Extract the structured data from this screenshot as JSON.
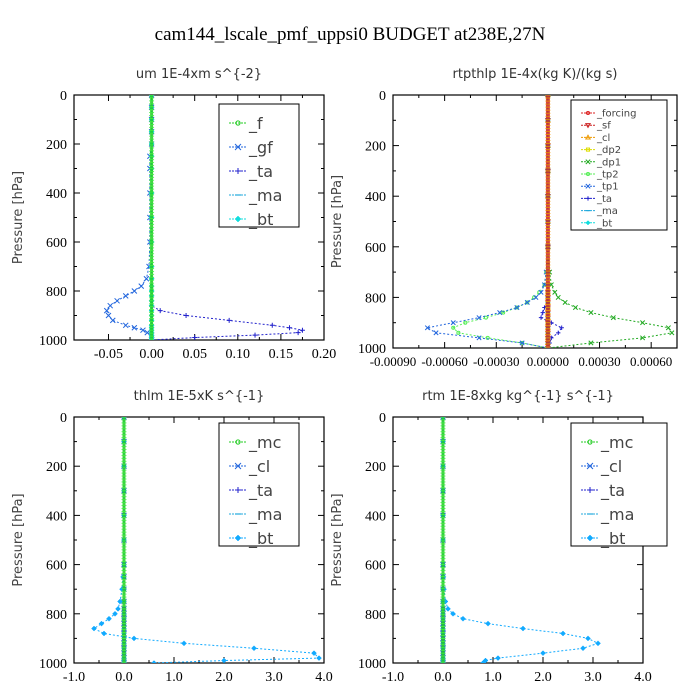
{
  "title": "cam144_lscale_pmf_uppsi0  BUDGET at238E,27N",
  "chart_data": [
    {
      "type": "line",
      "title": "um  1E-4xm s^{-2}",
      "ylabel": "Pressure [hPa]",
      "xlim": [
        -0.09,
        0.2
      ],
      "ylim": [
        1000,
        0
      ],
      "xticks": [
        -0.05,
        0.0,
        0.05,
        0.1,
        0.15,
        0.2
      ],
      "xtick_labels": [
        "-0.05",
        "0.00",
        "0.05",
        "0.10",
        "0.15",
        "0.20"
      ],
      "yticks": [
        0,
        200,
        400,
        600,
        800,
        1000
      ],
      "ytick_labels": [
        "0",
        "200",
        "400",
        "600",
        "800",
        "1000"
      ],
      "legend_position": "top-right",
      "legend_size": "large",
      "y": [
        0,
        50,
        100,
        150,
        200,
        250,
        300,
        400,
        500,
        600,
        700,
        750,
        780,
        800,
        820,
        840,
        860,
        880,
        900,
        920,
        940,
        950,
        960,
        970,
        980,
        990,
        1000
      ],
      "series": [
        {
          "name": "_f",
          "color": "#22cc22",
          "marker": "o",
          "values": [
            0,
            0,
            0,
            0,
            0,
            0,
            0,
            0,
            0,
            0,
            0,
            0,
            0,
            0,
            0,
            0,
            0,
            0,
            0,
            0,
            0,
            0,
            0,
            0,
            0,
            0,
            0
          ]
        },
        {
          "name": "_gf",
          "color": "#2266dd",
          "marker": "x",
          "values": [
            0,
            0,
            0,
            0,
            0,
            -0.002,
            -0.002,
            -0.002,
            -0.002,
            -0.002,
            -0.003,
            -0.006,
            -0.012,
            -0.02,
            -0.03,
            -0.04,
            -0.048,
            -0.052,
            -0.05,
            -0.045,
            -0.03,
            -0.02,
            -0.01,
            -0.005,
            0,
            0,
            0
          ]
        },
        {
          "name": "_ta",
          "color": "#2222cc",
          "marker": "+",
          "values": [
            0,
            0,
            0,
            0,
            0,
            0,
            0,
            0,
            0,
            0,
            0,
            0,
            0,
            0,
            0,
            0,
            0,
            0.01,
            0.04,
            0.09,
            0.14,
            0.16,
            0.175,
            0.17,
            0.12,
            0.05,
            0
          ]
        },
        {
          "name": "_ma",
          "color": "#22aadd",
          "marker": "-",
          "values": [
            0,
            0,
            0,
            0,
            0,
            0,
            0,
            0,
            0,
            0,
            0,
            0,
            0,
            0,
            0,
            0,
            0,
            0,
            0,
            0,
            0,
            0,
            0,
            0,
            0,
            0,
            0
          ]
        },
        {
          "name": "_bt",
          "color": "#11dddd",
          "marker": "◆",
          "values": [
            0,
            0,
            0,
            0,
            0,
            0,
            0,
            0,
            0,
            0,
            0,
            0,
            0,
            0,
            0,
            0,
            0,
            0,
            0,
            0,
            0,
            0,
            0,
            0,
            0,
            0,
            0
          ]
        }
      ]
    },
    {
      "type": "line",
      "title": "rtpthlp  1E-4x(kg K)/(kg s)",
      "ylabel": "Pressure [hPa]",
      "xlim": [
        -0.0009,
        0.00075
      ],
      "ylim": [
        1000,
        0
      ],
      "xticks": [
        -0.0009,
        -0.0006,
        -0.0003,
        0.0,
        0.0003,
        0.0006
      ],
      "xtick_labels": [
        "-0.00090",
        "-0.00060",
        "-0.00030",
        "0.00000",
        "0.00030",
        "0.00060"
      ],
      "yticks": [
        0,
        200,
        400,
        600,
        800,
        1000
      ],
      "ytick_labels": [
        "0",
        "200",
        "400",
        "600",
        "800",
        "1000"
      ],
      "legend_position": "top-right",
      "legend_size": "small",
      "y": [
        0,
        100,
        200,
        300,
        400,
        500,
        600,
        700,
        750,
        780,
        800,
        820,
        840,
        860,
        880,
        900,
        920,
        940,
        960,
        980,
        1000
      ],
      "series": [
        {
          "name": "_forcing",
          "color": "#dd2222",
          "marker": "o",
          "values": [
            0,
            0,
            0,
            0,
            0,
            0,
            0,
            0,
            0,
            0,
            0,
            0,
            0,
            0,
            0,
            0,
            0,
            0,
            0,
            0,
            0
          ]
        },
        {
          "name": "_sf",
          "color": "#cc2222",
          "marker": "▽",
          "values": [
            0,
            0,
            0,
            0,
            0,
            0,
            0,
            0,
            0,
            0,
            0,
            0,
            0,
            0,
            0,
            0,
            0,
            0,
            0,
            0,
            0
          ]
        },
        {
          "name": "_cl",
          "color": "#ee9900",
          "marker": "△",
          "values": [
            0,
            0,
            0,
            0,
            0,
            0,
            0,
            0,
            0,
            0,
            0,
            0,
            0,
            0,
            0,
            0,
            0,
            0,
            0,
            0,
            0
          ]
        },
        {
          "name": "_dp2",
          "color": "#dddd00",
          "marker": "□",
          "values": [
            0,
            0,
            0,
            0,
            0,
            0,
            0,
            0,
            0,
            0,
            0,
            0,
            0,
            0,
            0,
            0,
            0,
            0,
            0,
            0,
            0
          ]
        },
        {
          "name": "_dp1",
          "color": "#22aa22",
          "marker": "x",
          "values": [
            0,
            0,
            0,
            0,
            0,
            0,
            0,
            1e-05,
            2e-05,
            4e-05,
            6e-05,
            0.0001,
            0.00016,
            0.00025,
            0.00038,
            0.00055,
            0.0007,
            0.00072,
            0.00055,
            0.00025,
            0
          ]
        },
        {
          "name": "_tp2",
          "color": "#55ee55",
          "marker": "o",
          "values": [
            0,
            0,
            0,
            0,
            0,
            0,
            0,
            -1e-05,
            -2e-05,
            -5e-05,
            -8e-05,
            -0.00012,
            -0.00018,
            -0.00026,
            -0.00036,
            -0.00048,
            -0.00055,
            -0.00052,
            -0.00035,
            -0.00015,
            0
          ]
        },
        {
          "name": "_tp1",
          "color": "#2266dd",
          "marker": "x",
          "values": [
            0,
            0,
            0,
            0,
            0,
            0,
            0,
            -1e-05,
            -2e-05,
            -4e-05,
            -7e-05,
            -0.00012,
            -0.00018,
            -0.00028,
            -0.0004,
            -0.00055,
            -0.0007,
            -0.00065,
            -0.0004,
            -0.00015,
            0
          ]
        },
        {
          "name": "_ta",
          "color": "#2222cc",
          "marker": "+",
          "values": [
            0,
            0,
            0,
            0,
            0,
            0,
            0,
            0,
            0,
            0,
            0,
            0,
            -2e-05,
            -3e-05,
            -4e-05,
            2e-05,
            8e-05,
            6e-05,
            2e-05,
            1e-05,
            0
          ]
        },
        {
          "name": "_ma",
          "color": "#22aadd",
          "marker": "-",
          "values": [
            0,
            0,
            0,
            0,
            0,
            0,
            0,
            0,
            0,
            0,
            0,
            0,
            0,
            0,
            0,
            0,
            0,
            0,
            0,
            0,
            0
          ]
        },
        {
          "name": "_bt",
          "color": "#11dddd",
          "marker": "◆",
          "values": [
            0,
            0,
            0,
            0,
            0,
            0,
            0,
            0,
            0,
            0,
            0,
            0,
            0,
            0,
            0,
            0,
            0,
            0,
            0,
            0,
            0
          ]
        }
      ]
    },
    {
      "type": "line",
      "title": "thlm  1E-5xK s^{-1}",
      "ylabel": "Pressure [hPa]",
      "xlim": [
        -1.0,
        4.0
      ],
      "ylim": [
        1000,
        0
      ],
      "xticks": [
        -1.0,
        0.0,
        1.0,
        2.0,
        3.0,
        4.0
      ],
      "xtick_labels": [
        "-1.0",
        "0.0",
        "1.0",
        "2.0",
        "3.0",
        "4.0"
      ],
      "yticks": [
        0,
        200,
        400,
        600,
        800,
        1000
      ],
      "ytick_labels": [
        "0",
        "200",
        "400",
        "600",
        "800",
        "1000"
      ],
      "legend_position": "top-right",
      "legend_size": "large",
      "y": [
        0,
        100,
        200,
        300,
        400,
        500,
        600,
        650,
        700,
        750,
        780,
        800,
        820,
        840,
        860,
        880,
        900,
        920,
        940,
        960,
        980,
        990,
        1000
      ],
      "series": [
        {
          "name": "_mc",
          "color": "#22cc22",
          "marker": "o",
          "values": [
            0,
            0,
            0,
            0,
            0,
            0,
            0,
            0,
            0,
            0,
            0,
            0,
            0,
            0,
            0,
            0,
            0,
            0,
            0,
            0,
            0,
            0,
            0
          ]
        },
        {
          "name": "_cl",
          "color": "#2266dd",
          "marker": "x",
          "values": [
            0,
            0,
            0,
            0,
            0,
            0,
            0,
            0,
            0,
            0,
            0,
            0,
            0,
            0,
            0,
            0,
            0,
            0,
            0,
            0,
            0,
            0,
            0
          ]
        },
        {
          "name": "_ta",
          "color": "#2222cc",
          "marker": "+",
          "values": [
            0,
            0,
            0,
            0,
            0,
            0,
            0,
            0,
            0,
            0,
            0,
            0,
            0,
            0,
            0,
            0,
            0,
            0,
            0,
            0,
            0,
            0,
            0
          ]
        },
        {
          "name": "_ma",
          "color": "#22aadd",
          "marker": "-",
          "values": [
            0,
            0,
            0,
            0,
            0,
            0,
            0,
            0,
            0,
            0,
            0,
            0,
            0,
            0,
            0,
            0,
            0,
            0,
            0,
            0,
            0,
            0,
            0
          ]
        },
        {
          "name": "_bt",
          "color": "#11aaff",
          "marker": "◆",
          "values": [
            0,
            0,
            0,
            0,
            0,
            0,
            0,
            -0.02,
            -0.04,
            -0.08,
            -0.12,
            -0.18,
            -0.3,
            -0.45,
            -0.6,
            -0.4,
            0.2,
            1.2,
            2.6,
            3.8,
            3.9,
            2.0,
            0.6
          ]
        }
      ]
    },
    {
      "type": "line",
      "title": "rtm  1E-8xkg kg^{-1} s^{-1}",
      "ylabel": "Pressure [hPa]",
      "xlim": [
        -1.0,
        4.0
      ],
      "ylim": [
        1000,
        0
      ],
      "xticks": [
        -1.0,
        0.0,
        1.0,
        2.0,
        3.0,
        4.0
      ],
      "xtick_labels": [
        "-1.0",
        "0.0",
        "1.0",
        "2.0",
        "3.0",
        "4.0"
      ],
      "yticks": [
        0,
        200,
        400,
        600,
        800,
        1000
      ],
      "ytick_labels": [
        "0",
        "200",
        "400",
        "600",
        "800",
        "1000"
      ],
      "legend_position": "top-right",
      "legend_size": "large",
      "y": [
        0,
        100,
        200,
        300,
        400,
        500,
        600,
        650,
        700,
        750,
        780,
        800,
        820,
        840,
        860,
        880,
        900,
        920,
        940,
        960,
        980,
        990,
        1000
      ],
      "series": [
        {
          "name": "_mc",
          "color": "#22cc22",
          "marker": "o",
          "values": [
            0,
            0,
            0,
            0,
            0,
            0,
            0,
            0,
            0,
            0,
            0,
            0,
            0,
            0,
            0,
            0,
            0,
            0,
            0,
            0,
            0,
            0,
            0
          ]
        },
        {
          "name": "_cl",
          "color": "#2266dd",
          "marker": "x",
          "values": [
            0,
            0,
            0,
            0,
            0,
            0,
            0,
            0,
            0,
            0,
            0,
            0,
            0,
            0,
            0,
            0,
            0,
            0,
            0,
            0,
            0,
            0,
            0
          ]
        },
        {
          "name": "_ta",
          "color": "#2222cc",
          "marker": "+",
          "values": [
            0,
            0,
            0,
            0,
            0,
            0,
            0,
            0,
            0,
            0,
            0,
            0,
            0,
            0,
            0,
            0,
            0,
            0,
            0,
            0,
            0,
            0,
            0
          ]
        },
        {
          "name": "_ma",
          "color": "#22aadd",
          "marker": "-",
          "values": [
            0,
            0,
            0,
            0,
            0,
            0,
            0,
            0,
            0,
            0,
            0,
            0,
            0,
            0,
            0,
            0,
            0,
            0,
            0,
            0,
            0,
            0,
            0
          ]
        },
        {
          "name": "_bt",
          "color": "#11aaff",
          "marker": "◆",
          "values": [
            0,
            0,
            0,
            0,
            0,
            0,
            0,
            0.01,
            0.02,
            0.05,
            0.1,
            0.2,
            0.4,
            0.9,
            1.6,
            2.4,
            2.9,
            3.1,
            2.8,
            2.0,
            1.1,
            0.85,
            0.8
          ]
        }
      ]
    }
  ]
}
